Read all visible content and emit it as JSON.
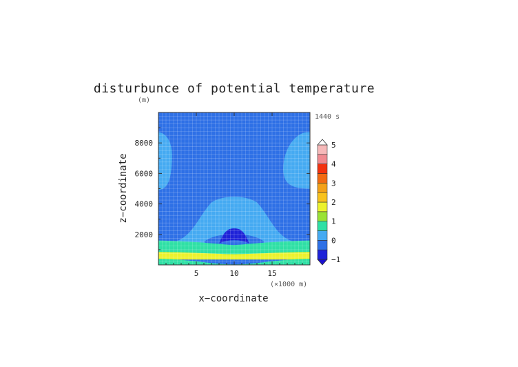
{
  "chart_data": {
    "type": "heatmap",
    "title": "disturbunce of potential temperature",
    "time_label": "1440 s",
    "xlabel": "x−coordinate",
    "ylabel": "z−coordinate",
    "x_unit": "(×1000 m)",
    "y_unit": "(m)",
    "xlim": [
      0,
      20
    ],
    "ylim": [
      0,
      10000
    ],
    "x_ticks": [
      5,
      10,
      15
    ],
    "y_ticks": [
      2000,
      4000,
      6000,
      8000
    ],
    "x_tick_labels": [
      "5",
      "10",
      "15"
    ],
    "y_tick_labels": [
      "2000",
      "4000",
      "6000",
      "8000"
    ],
    "colorbar": {
      "levels": [
        -1,
        -0.5,
        0,
        0.5,
        1,
        1.5,
        2,
        2.5,
        3,
        3.5,
        4,
        4.5,
        5
      ],
      "colors": [
        "#1e22d8",
        "#2e70e6",
        "#45aaf2",
        "#2fe0a5",
        "#9ae235",
        "#ecf22c",
        "#f8c21c",
        "#f4a117",
        "#f26a12",
        "#f2320f",
        "#f08a90",
        "#f6b9b9"
      ],
      "over_color": "#ffffff",
      "under_color": "#1a10d0",
      "tick_values": [
        -1,
        0,
        1,
        2,
        3,
        4,
        5
      ],
      "tick_labels": [
        "−1",
        "0",
        "1",
        "2",
        "3",
        "4",
        "5"
      ]
    },
    "regions": [
      {
        "level": -0.5,
        "description": "background field",
        "x": [
          0,
          20
        ],
        "z": [
          0,
          10000
        ]
      },
      {
        "level": 0,
        "description": "upper-left light patch",
        "x": [
          0,
          1.8
        ],
        "z": [
          4900,
          8700
        ]
      },
      {
        "level": 0,
        "description": "upper-right light patch",
        "x": [
          16.5,
          20
        ],
        "z": [
          5000,
          8700
        ]
      },
      {
        "level": 0,
        "description": "central dome",
        "x": [
          2,
          18
        ],
        "z": [
          500,
          4500
        ]
      },
      {
        "level": -0.5,
        "description": "inner dome",
        "x": [
          6,
          14
        ],
        "z": [
          1000,
          2500
        ]
      },
      {
        "level": -1,
        "description": "cold core",
        "x": [
          8,
          12
        ],
        "z": [
          1400,
          2400
        ]
      },
      {
        "level": 0.5,
        "description": "green band",
        "x": [
          0,
          20
        ],
        "z": [
          700,
          1600
        ]
      },
      {
        "level": 1.5,
        "description": "yellow band",
        "x": [
          0,
          20
        ],
        "z": [
          350,
          850
        ]
      },
      {
        "level": 0.5,
        "description": "surface green layer",
        "x": [
          0,
          20
        ],
        "z": [
          0,
          400
        ]
      }
    ]
  }
}
